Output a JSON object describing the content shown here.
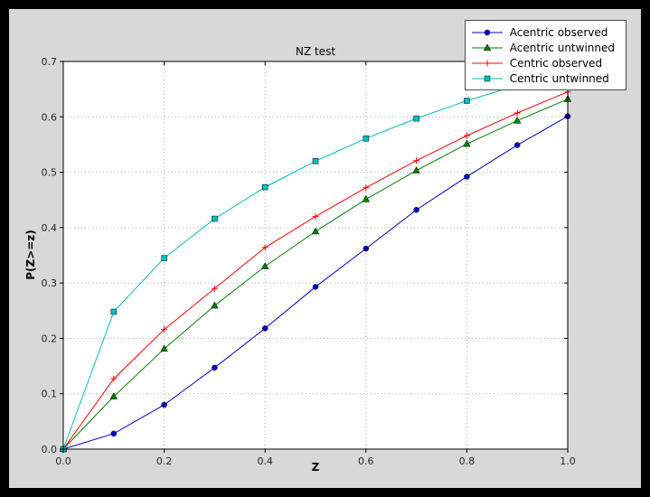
{
  "figure": {
    "outer_bg": "#000000",
    "figure_bg": "#d8d8d8",
    "axes_bg": "#ffffff",
    "grid_color": "#aaaaaa",
    "axis_color": "#000000",
    "tick_label_color": "#262626"
  },
  "chart_data": {
    "type": "line",
    "title": "NZ test",
    "xlabel": "Z",
    "ylabel": "P(Z>=z)",
    "xlim": [
      0.0,
      1.0
    ],
    "ylim": [
      0.0,
      0.7
    ],
    "grid": true,
    "legend_position": "upper right",
    "xticks": [
      0.0,
      0.2,
      0.4,
      0.6,
      0.8,
      1.0
    ],
    "xtick_labels": [
      "0.0",
      "0.2",
      "0.4",
      "0.6",
      "0.8",
      "1.0"
    ],
    "yticks": [
      0.0,
      0.1,
      0.2,
      0.3,
      0.4,
      0.5,
      0.6,
      0.7
    ],
    "ytick_labels": [
      "0.0",
      "0.1",
      "0.2",
      "0.3",
      "0.4",
      "0.5",
      "0.6",
      "0.7"
    ],
    "x": [
      0.0,
      0.1,
      0.2,
      0.3,
      0.4,
      0.5,
      0.6,
      0.7,
      0.8,
      0.9,
      1.0
    ],
    "series": [
      {
        "name": "Acentric observed",
        "color": "#0000cc",
        "marker": "circle",
        "values": [
          0.0,
          0.028,
          0.08,
          0.147,
          0.218,
          0.293,
          0.362,
          0.432,
          0.492,
          0.549,
          0.601
        ]
      },
      {
        "name": "Acentric untwinned",
        "color": "#007f00",
        "marker": "triangle",
        "values": [
          0.0,
          0.095,
          0.181,
          0.259,
          0.33,
          0.393,
          0.451,
          0.503,
          0.551,
          0.593,
          0.632
        ]
      },
      {
        "name": "Centric observed",
        "color": "#ff0000",
        "marker": "plus",
        "values": [
          0.0,
          0.127,
          0.216,
          0.29,
          0.364,
          0.42,
          0.472,
          0.521,
          0.566,
          0.607,
          0.645
        ]
      },
      {
        "name": "Centric untwinned",
        "color": "#00bfbf",
        "marker": "square",
        "values": [
          0.0,
          0.248,
          0.345,
          0.416,
          0.473,
          0.52,
          0.561,
          0.597,
          0.629,
          0.657,
          0.683
        ]
      }
    ]
  }
}
